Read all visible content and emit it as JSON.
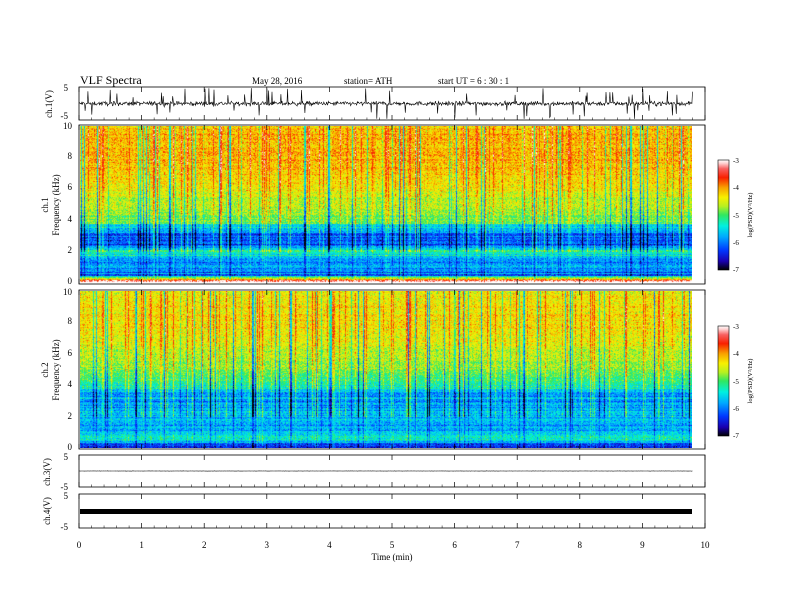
{
  "header": {
    "title": "VLF  Spectra",
    "date": "May 28, 2016",
    "station": "station= ATH",
    "start": "start  UT  =    6  : 30 : 1"
  },
  "colors": {
    "background": "#ffffff",
    "axis": "#000000",
    "colormap": [
      "#000000",
      "#1a00b0",
      "#0038ff",
      "#00a8ff",
      "#00f0e0",
      "#30e860",
      "#b8f020",
      "#f8f000",
      "#f8a000",
      "#f82000",
      "#f83000",
      "#f86060",
      "#ffd0d0",
      "#ffffff"
    ]
  },
  "chart_data": [
    {
      "id": "ch1-waveform",
      "type": "line",
      "ylabel": "ch.1(V)",
      "ylim": [
        -5,
        5
      ],
      "yticks": [
        "5",
        "-5"
      ],
      "xlim": [
        0,
        10
      ],
      "description_values": {
        "baseline": 0,
        "typical_amplitude": 1.2,
        "max_spike": 5
      }
    },
    {
      "id": "ch1-spectrogram",
      "type": "heatmap",
      "ylabel_line1": "ch.1",
      "ylabel_line2": "Frequency  (kHz)",
      "ylim": [
        0,
        10
      ],
      "yticks": [
        "0",
        "2",
        "4",
        "6",
        "8",
        "10"
      ],
      "xlim": [
        0,
        9.8
      ],
      "colorbar": {
        "label": "log(PSD)(V²/Hz)",
        "range": [
          -7,
          -3
        ],
        "ticks": [
          "-3",
          "-4",
          "-5",
          "-6",
          "-7"
        ]
      },
      "frequency_profile_logpsd": [
        {
          "f": 0.1,
          "v": -3.0
        },
        {
          "f": 0.5,
          "v": -6.2
        },
        {
          "f": 1.0,
          "v": -5.8
        },
        {
          "f": 1.5,
          "v": -6.0
        },
        {
          "f": 2.0,
          "v": -5.0
        },
        {
          "f": 2.5,
          "v": -6.3
        },
        {
          "f": 3.0,
          "v": -6.1
        },
        {
          "f": 3.5,
          "v": -5.6
        },
        {
          "f": 4.0,
          "v": -4.9
        },
        {
          "f": 5.0,
          "v": -4.6
        },
        {
          "f": 6.0,
          "v": -4.4
        },
        {
          "f": 7.0,
          "v": -4.2
        },
        {
          "f": 8.0,
          "v": -4.1
        },
        {
          "f": 9.0,
          "v": -4.1
        },
        {
          "f": 10.0,
          "v": -4.2
        }
      ]
    },
    {
      "id": "ch2-spectrogram",
      "type": "heatmap",
      "ylabel_line1": "ch.2",
      "ylabel_line2": "Frequency  (kHz)",
      "ylim": [
        0,
        10
      ],
      "yticks": [
        "0",
        "2",
        "4",
        "6",
        "8",
        "10"
      ],
      "xlim": [
        0,
        9.8
      ],
      "colorbar": {
        "label": "log(PSD)(V²/Hz)",
        "range": [
          -7,
          -3
        ],
        "ticks": [
          "-3",
          "-4",
          "-5",
          "-6",
          "-7"
        ]
      },
      "frequency_profile_logpsd": [
        {
          "f": 0.1,
          "v": -6.5
        },
        {
          "f": 0.5,
          "v": -5.4
        },
        {
          "f": 1.0,
          "v": -5.6
        },
        {
          "f": 1.5,
          "v": -5.8
        },
        {
          "f": 2.0,
          "v": -5.6
        },
        {
          "f": 2.5,
          "v": -5.8
        },
        {
          "f": 3.0,
          "v": -5.9
        },
        {
          "f": 3.5,
          "v": -5.7
        },
        {
          "f": 4.0,
          "v": -5.2
        },
        {
          "f": 5.0,
          "v": -4.8
        },
        {
          "f": 6.0,
          "v": -4.6
        },
        {
          "f": 7.0,
          "v": -4.4
        },
        {
          "f": 8.0,
          "v": -4.3
        },
        {
          "f": 9.0,
          "v": -4.3
        },
        {
          "f": 10.0,
          "v": -4.4
        }
      ]
    },
    {
      "id": "ch3-waveform",
      "type": "line",
      "ylabel": "ch.3(V)",
      "ylim": [
        -5,
        5
      ],
      "yticks": [
        "5",
        "-5"
      ],
      "xlim": [
        0,
        10
      ],
      "description_values": {
        "baseline": 0,
        "typical_amplitude": 0.05
      }
    },
    {
      "id": "ch4-waveform",
      "type": "line",
      "ylabel": "ch.4(V)",
      "ylim": [
        -5,
        5
      ],
      "yticks": [
        "5",
        "-5"
      ],
      "xlim": [
        0,
        10
      ],
      "description_values": {
        "baseline": 0,
        "typical_amplitude": 0.3
      }
    }
  ],
  "xaxis": {
    "label": "Time  (min)",
    "range": [
      0,
      10
    ],
    "ticks": [
      "0",
      "1",
      "2",
      "3",
      "4",
      "5",
      "6",
      "7",
      "8",
      "9",
      "10"
    ]
  }
}
